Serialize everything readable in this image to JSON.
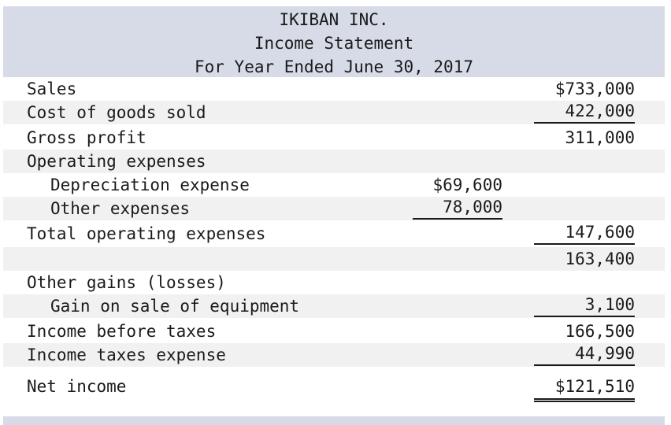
{
  "header": {
    "company": "IKIBAN INC.",
    "statement": "Income Statement",
    "period": "For Year Ended June 30, 2017"
  },
  "rows": {
    "sales": {
      "label": "Sales",
      "right": "$733,000"
    },
    "cogs": {
      "label": "Cost of goods sold",
      "right": "422,000"
    },
    "gross": {
      "label": "Gross profit",
      "right": "311,000"
    },
    "opex": {
      "label": "Operating expenses"
    },
    "dep": {
      "label": "Depreciation expense",
      "mid": "$69,600"
    },
    "other": {
      "label": "Other expenses",
      "mid": "78,000"
    },
    "total_opex": {
      "label": "Total operating expenses",
      "right": "147,600"
    },
    "subtotal": {
      "right": "163,400"
    },
    "gains": {
      "label": "Other gains (losses)"
    },
    "gain_sale": {
      "label": "Gain on sale of equipment",
      "right": "3,100"
    },
    "ibt": {
      "label": "Income before taxes",
      "right": "166,500"
    },
    "tax": {
      "label": "Income taxes expense",
      "right": "44,990"
    },
    "net": {
      "label": "Net income",
      "right": "$121,510"
    }
  }
}
